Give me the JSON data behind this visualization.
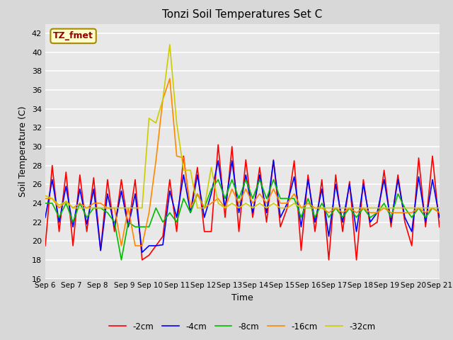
{
  "title": "Tonzi Soil Temperatures Set C",
  "xlabel": "Time",
  "ylabel": "Soil Temperature (C)",
  "ylim": [
    16,
    43
  ],
  "yticks": [
    16,
    18,
    20,
    22,
    24,
    26,
    28,
    30,
    32,
    34,
    36,
    38,
    40,
    42
  ],
  "annotation_text": "TZ_fmet",
  "annotation_box_facecolor": "#ffffcc",
  "annotation_text_color": "#990000",
  "annotation_edge_color": "#aa8800",
  "bg_color": "#d8d8d8",
  "plot_bg_color": "#e8e8e8",
  "legend": [
    "-2cm",
    "-4cm",
    "-8cm",
    "-16cm",
    "-32cm"
  ],
  "line_colors": [
    "#ff0000",
    "#0000ff",
    "#00bb00",
    "#ff8800",
    "#cccc00"
  ],
  "line_width": 1.2,
  "series_2cm": [
    19.5,
    28.0,
    21.0,
    27.3,
    19.5,
    27.0,
    21.0,
    26.7,
    19.0,
    26.5,
    21.0,
    26.5,
    21.5,
    26.5,
    18.0,
    18.5,
    19.5,
    20.5,
    26.5,
    21.0,
    29.0,
    23.0,
    27.8,
    21.0,
    21.0,
    30.2,
    22.5,
    30.0,
    21.0,
    28.6,
    22.5,
    27.8,
    22.0,
    28.6,
    21.5,
    23.5,
    28.5,
    19.0,
    27.0,
    21.0,
    26.5,
    18.0,
    27.0,
    21.0,
    26.3,
    18.0,
    26.5,
    21.5,
    22.0,
    27.5,
    21.5,
    27.0,
    22.0,
    19.5,
    28.8,
    21.5,
    29.0,
    21.5
  ],
  "series_4cm": [
    22.5,
    26.5,
    22.0,
    25.8,
    21.5,
    25.5,
    21.8,
    25.5,
    19.0,
    25.0,
    21.5,
    25.3,
    21.5,
    25.0,
    18.8,
    19.5,
    19.5,
    19.6,
    25.3,
    22.5,
    27.0,
    23.0,
    27.0,
    22.5,
    25.0,
    28.5,
    23.5,
    28.5,
    23.0,
    27.0,
    23.0,
    27.0,
    23.0,
    28.5,
    22.5,
    24.0,
    26.8,
    21.5,
    26.5,
    22.0,
    25.5,
    20.5,
    26.0,
    22.0,
    26.0,
    21.0,
    26.0,
    22.0,
    23.0,
    26.5,
    22.0,
    26.5,
    22.5,
    21.0,
    26.8,
    22.0,
    26.5,
    22.5
  ],
  "series_8cm": [
    24.0,
    24.0,
    22.5,
    24.0,
    22.0,
    24.0,
    22.5,
    23.5,
    23.5,
    23.0,
    22.0,
    18.0,
    22.0,
    21.5,
    21.5,
    21.5,
    23.5,
    22.0,
    23.0,
    22.0,
    24.5,
    23.0,
    25.0,
    23.5,
    25.5,
    26.5,
    24.5,
    26.5,
    24.5,
    26.5,
    24.5,
    26.5,
    24.5,
    26.5,
    24.5,
    24.5,
    24.5,
    22.5,
    24.5,
    22.5,
    24.0,
    22.5,
    23.5,
    22.5,
    23.5,
    22.5,
    23.5,
    22.5,
    23.0,
    24.0,
    22.5,
    25.0,
    23.5,
    22.5,
    23.5,
    22.5,
    23.5,
    23.0
  ],
  "series_16cm": [
    24.5,
    24.5,
    23.5,
    24.2,
    23.5,
    24.0,
    23.5,
    24.0,
    24.0,
    23.5,
    23.5,
    19.5,
    23.5,
    19.5,
    19.5,
    23.0,
    28.5,
    35.0,
    37.2,
    29.0,
    28.8,
    23.5,
    25.0,
    23.5,
    24.0,
    24.5,
    23.5,
    25.5,
    24.0,
    25.5,
    24.0,
    25.0,
    24.0,
    25.5,
    24.0,
    24.0,
    25.0,
    23.5,
    24.0,
    23.5,
    23.5,
    23.0,
    23.5,
    23.0,
    23.5,
    23.0,
    23.5,
    23.0,
    23.0,
    23.5,
    23.0,
    23.0,
    23.0,
    23.0,
    23.5,
    23.0,
    23.5,
    23.0
  ],
  "series_32cm": [
    24.8,
    24.5,
    23.8,
    24.2,
    23.5,
    23.5,
    23.5,
    23.5,
    23.5,
    23.5,
    23.5,
    23.5,
    23.5,
    23.5,
    23.5,
    33.0,
    32.5,
    35.0,
    40.8,
    32.5,
    27.5,
    27.5,
    23.5,
    23.5,
    27.8,
    24.0,
    23.5,
    24.0,
    23.5,
    24.0,
    23.5,
    24.0,
    23.5,
    24.0,
    23.5,
    23.5,
    24.0,
    23.5,
    23.5,
    23.5,
    23.5,
    23.5,
    23.5,
    23.5,
    23.5,
    23.5,
    23.5,
    23.5,
    23.5,
    23.5,
    23.5,
    23.5,
    23.5,
    23.5,
    23.5,
    23.5,
    23.5,
    23.5
  ]
}
